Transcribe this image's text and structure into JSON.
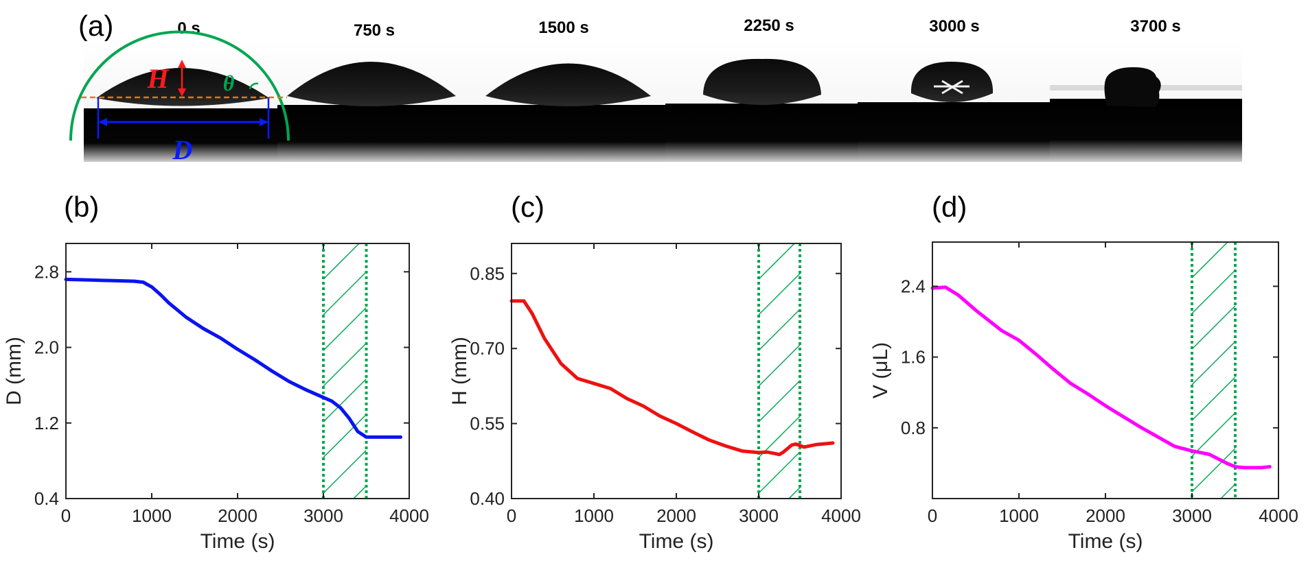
{
  "panel_a": {
    "letter": "(a)",
    "frames": [
      "0 s",
      "750 s",
      "1500 s",
      "2250 s",
      "3000 s",
      "3700 s"
    ],
    "annotations": {
      "H": "H",
      "theta": "θ",
      "D": "D"
    },
    "colors": {
      "height_arrow": "#ff1a1a",
      "fit_circle": "#00a651",
      "baseline": "#e87511",
      "diameter_arrow": "#0a1bff"
    }
  },
  "panel_labels": {
    "b": "(b)",
    "c": "(c)",
    "d": "(d)"
  },
  "chart_data": [
    {
      "type": "line",
      "panel": "(b)",
      "xlabel": "Time (s)",
      "ylabel": "D (mm)",
      "xlim": [
        0,
        4000
      ],
      "ylim": [
        0.4,
        3.1
      ],
      "xticks": [
        "0",
        "1000",
        "2000",
        "3000",
        "4000"
      ],
      "yticks": [
        "0.4",
        "1.2",
        "2.0",
        "2.8"
      ],
      "color": "#0a14f0",
      "x": [
        0,
        200,
        400,
        600,
        800,
        900,
        1000,
        1100,
        1200,
        1400,
        1600,
        1800,
        2000,
        2200,
        2400,
        2600,
        2800,
        3000,
        3100,
        3200,
        3300,
        3400,
        3500,
        3600,
        3800,
        3900
      ],
      "y": [
        2.72,
        2.715,
        2.71,
        2.705,
        2.7,
        2.69,
        2.64,
        2.56,
        2.47,
        2.32,
        2.2,
        2.1,
        1.98,
        1.87,
        1.75,
        1.64,
        1.55,
        1.47,
        1.43,
        1.36,
        1.25,
        1.11,
        1.05,
        1.05,
        1.05,
        1.05
      ],
      "shaded_region": [
        3000,
        3500
      ]
    },
    {
      "type": "line",
      "panel": "(c)",
      "xlabel": "Time (s)",
      "ylabel": "H (mm)",
      "xlim": [
        0,
        4000
      ],
      "ylim": [
        0.4,
        0.91
      ],
      "xticks": [
        "0",
        "1000",
        "2000",
        "3000",
        "4000"
      ],
      "yticks": [
        "0.40",
        "0.55",
        "0.70",
        "0.85"
      ],
      "color": "#ee1111",
      "x": [
        0,
        150,
        250,
        400,
        600,
        800,
        1000,
        1200,
        1400,
        1600,
        1800,
        2000,
        2200,
        2400,
        2600,
        2800,
        3000,
        3100,
        3200,
        3250,
        3300,
        3400,
        3450,
        3550,
        3700,
        3900
      ],
      "y": [
        0.795,
        0.795,
        0.77,
        0.72,
        0.67,
        0.64,
        0.63,
        0.62,
        0.6,
        0.585,
        0.565,
        0.55,
        0.533,
        0.517,
        0.505,
        0.495,
        0.492,
        0.493,
        0.49,
        0.488,
        0.493,
        0.507,
        0.509,
        0.503,
        0.508,
        0.511
      ],
      "shaded_region": [
        3000,
        3500
      ]
    },
    {
      "type": "line",
      "panel": "(d)",
      "xlabel": "Time (s)",
      "ylabel": "V (μL)",
      "xlim": [
        0,
        4000
      ],
      "ylim": [
        0,
        2.9
      ],
      "xticks": [
        "0",
        "1000",
        "2000",
        "3000",
        "4000"
      ],
      "yticks": [
        "0.8",
        "1.6",
        "2.4"
      ],
      "color": "#ff00ff",
      "x": [
        0,
        150,
        300,
        500,
        800,
        1000,
        1200,
        1400,
        1600,
        1800,
        2000,
        2200,
        2400,
        2600,
        2800,
        3000,
        3200,
        3400,
        3500,
        3600,
        3800,
        3900
      ],
      "y": [
        2.38,
        2.39,
        2.3,
        2.13,
        1.9,
        1.79,
        1.63,
        1.46,
        1.3,
        1.18,
        1.05,
        0.93,
        0.81,
        0.7,
        0.59,
        0.54,
        0.5,
        0.4,
        0.36,
        0.35,
        0.35,
        0.36
      ],
      "shaded_region": [
        3000,
        3500
      ]
    }
  ]
}
